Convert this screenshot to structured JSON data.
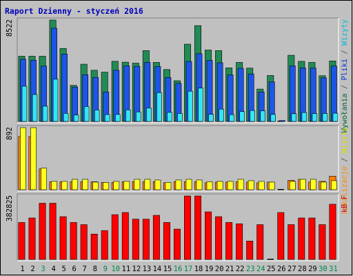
{
  "chart_data": {
    "title": "Raport Dzienny -  styczeń 2016",
    "type": "bar",
    "categories": [
      "1",
      "2",
      "3",
      "4",
      "5",
      "6",
      "7",
      "8",
      "9",
      "10",
      "11",
      "12",
      "13",
      "14",
      "15",
      "16",
      "17",
      "18",
      "19",
      "20",
      "21",
      "22",
      "23",
      "24",
      "25",
      "26",
      "27",
      "28",
      "29",
      "30",
      "31"
    ],
    "weekend_days": [
      "3",
      "9",
      "10",
      "16",
      "17",
      "23",
      "24",
      "30",
      "31"
    ],
    "panels": [
      {
        "id": "hits",
        "ymax_label": "8522",
        "ymax": 8522,
        "right_labels": [
          {
            "text": "Wywołania",
            "color": "#006633"
          },
          {
            "text": " / ",
            "color": "#555555"
          },
          {
            "text": "Pliki",
            "color": "#0033cc"
          },
          {
            "text": " / ",
            "color": "#555555"
          },
          {
            "text": "Wizyty",
            "color": "#00bbdd"
          }
        ],
        "series": [
          {
            "name": "Wywołania",
            "color": "#218b55",
            "values": [
              5480,
              5480,
              5480,
              8522,
              6130,
              3030,
              4810,
              4300,
              4140,
              5050,
              4980,
              4900,
              5950,
              4960,
              4360,
              3420,
              6490,
              8050,
              6000,
              5950,
              4500,
              4960,
              4480,
              2720,
              3860,
              0,
              5560,
              5050,
              4960,
              3840,
              5080
            ]
          },
          {
            "name": "Pliki",
            "color": "#1e55e8",
            "values": [
              5230,
              5140,
              4650,
              7830,
              5660,
              2890,
              3930,
              3700,
              2470,
              4300,
              4670,
              4630,
              4960,
              4620,
              3690,
              3200,
              5040,
              5690,
              5130,
              4930,
              3910,
              4460,
              3990,
              2480,
              3320,
              80,
              4670,
              4500,
              4480,
              3660,
              4650
            ]
          },
          {
            "name": "Wizyty",
            "color": "#33e5f5",
            "values": [
              2960,
              2260,
              1280,
              3550,
              680,
              540,
              1250,
              960,
              580,
              590,
              970,
              800,
              1130,
              2420,
              760,
              670,
              2540,
              2800,
              600,
              1030,
              570,
              830,
              920,
              890,
              590,
              0,
              650,
              750,
              660,
              670,
              690
            ]
          }
        ]
      },
      {
        "id": "sites",
        "ymax_label": "892",
        "ymax": 892,
        "right_labels": [
          {
            "text": "Lokalizacje",
            "color": "#ff8800"
          },
          {
            "text": " / ",
            "color": "#555555"
          },
          {
            "text": "Wizyty",
            "color": "#dddd00"
          }
        ],
        "series": [
          {
            "name": "Lokalizacje",
            "color": "#ff8000",
            "values": [
              765,
              765,
              300,
              115,
              115,
              115,
              115,
              115,
              105,
              105,
              115,
              115,
              115,
              115,
              100,
              115,
              115,
              115,
              100,
              110,
              110,
              115,
              110,
              100,
              110,
              0,
              135,
              150,
              110,
              120,
              195
            ]
          },
          {
            "name": "Wizyty",
            "color": "#ffff22",
            "values": [
              892,
              892,
              310,
              120,
              120,
              150,
              150,
              110,
              105,
              120,
              120,
              150,
              150,
              140,
              105,
              140,
              150,
              140,
              115,
              120,
              120,
              150,
              130,
              120,
              110,
              0,
              120,
              150,
              150,
              110,
              130
            ]
          }
        ]
      },
      {
        "id": "kbytes",
        "ymax_label": "382825",
        "ymax": 382825,
        "right_labels": [
          {
            "text": "kB F",
            "color": "#cc0000"
          }
        ],
        "series": [
          {
            "name": "kB F",
            "color": "#ff0000",
            "values": [
              223000,
              250000,
              339000,
              339000,
              258000,
              223000,
              210000,
              153000,
              174000,
              270000,
              283000,
              243000,
              243000,
              266000,
              223000,
              183000,
              382825,
              382825,
              287000,
              258000,
              223000,
              215000,
              111000,
              210000,
              0,
              283000,
              210000,
              250000,
              250000,
              210000,
              333000
            ]
          }
        ]
      }
    ]
  }
}
